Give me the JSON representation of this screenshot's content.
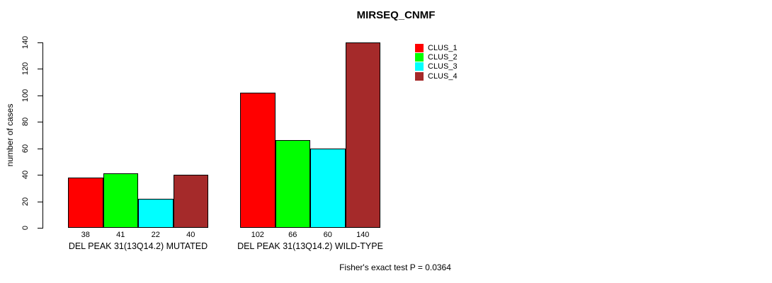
{
  "title": "MIRSEQ_CNMF",
  "footer": "Fisher's exact test P = 0.0364",
  "y_axis": {
    "label": "number of cases",
    "ticks": [
      0,
      20,
      40,
      60,
      80,
      100,
      120,
      140
    ]
  },
  "legend": [
    {
      "label": "CLUS_1",
      "color": "#ff0000"
    },
    {
      "label": "CLUS_2",
      "color": "#00ff00"
    },
    {
      "label": "CLUS_3",
      "color": "#00ffff"
    },
    {
      "label": "CLUS_4",
      "color": "#a52a2a"
    }
  ],
  "chart_data": {
    "type": "bar",
    "title": "MIRSEQ_CNMF",
    "xlabel": "",
    "ylabel": "number of cases",
    "ylim": [
      0,
      140
    ],
    "grid": false,
    "legend_position": "top-right",
    "series_names": [
      "CLUS_1",
      "CLUS_2",
      "CLUS_3",
      "CLUS_4"
    ],
    "series_colors": [
      "#ff0000",
      "#00ff00",
      "#00ffff",
      "#a52a2a"
    ],
    "groups": [
      {
        "label": "DEL PEAK 31(13Q14.2) MUTATED",
        "values": [
          38,
          41,
          22,
          40
        ]
      },
      {
        "label": "DEL PEAK 31(13Q14.2) WILD-TYPE",
        "values": [
          102,
          66,
          60,
          140
        ]
      }
    ],
    "bar_value_labels": [
      [
        38,
        41,
        22,
        40
      ],
      [
        102,
        66,
        60,
        140
      ]
    ],
    "annotation": "Fisher's exact test P = 0.0364"
  }
}
